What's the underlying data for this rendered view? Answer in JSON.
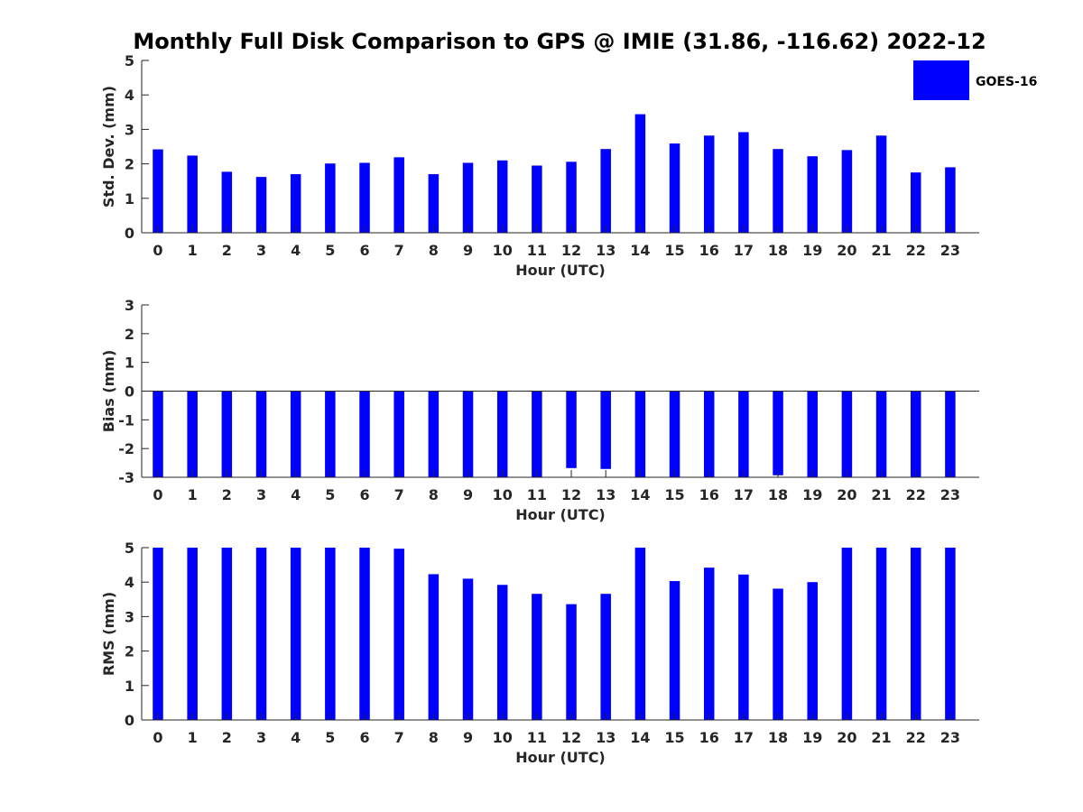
{
  "title": "Monthly Full Disk Comparison to GPS @ IMIE (31.86, -116.62) 2022-12",
  "legend": {
    "label": "GOES-16",
    "color": "#0000ff"
  },
  "chart_data": [
    {
      "type": "bar",
      "xlabel": "Hour (UTC)",
      "ylabel": "Std. Dev. (mm)",
      "ylim": [
        0,
        5
      ],
      "yticks": [
        0,
        1,
        2,
        3,
        4,
        5
      ],
      "categories": [
        "0",
        "1",
        "2",
        "3",
        "4",
        "5",
        "6",
        "7",
        "8",
        "9",
        "10",
        "11",
        "12",
        "13",
        "14",
        "15",
        "16",
        "17",
        "18",
        "19",
        "20",
        "21",
        "22",
        "23"
      ],
      "series": [
        {
          "name": "GOES-16",
          "color": "#0000ff",
          "values": [
            2.42,
            2.24,
            1.77,
            1.62,
            1.7,
            2.01,
            2.03,
            2.19,
            1.7,
            2.03,
            2.1,
            1.95,
            2.06,
            2.43,
            3.44,
            2.59,
            2.82,
            2.92,
            2.43,
            2.22,
            2.4,
            2.82,
            1.75,
            1.9
          ]
        }
      ],
      "legend_position": "top-right"
    },
    {
      "type": "bar",
      "xlabel": "Hour (UTC)",
      "ylabel": "Bias (mm)",
      "ylim": [
        -3,
        3
      ],
      "yticks": [
        -3,
        -2,
        -1,
        0,
        1,
        2,
        3
      ],
      "categories": [
        "0",
        "1",
        "2",
        "3",
        "4",
        "5",
        "6",
        "7",
        "8",
        "9",
        "10",
        "11",
        "12",
        "13",
        "14",
        "15",
        "16",
        "17",
        "18",
        "19",
        "20",
        "21",
        "22",
        "23"
      ],
      "series": [
        {
          "name": "GOES-16",
          "color": "#0000ff",
          "values": [
            -3,
            -3,
            -3,
            -3,
            -3,
            -3,
            -3,
            -3,
            -3,
            -3,
            -3,
            -3,
            -2.68,
            -2.71,
            -3,
            -3,
            -3,
            -3,
            -2.93,
            -3,
            -3,
            -3,
            -3,
            -3
          ]
        }
      ],
      "zero_line": true
    },
    {
      "type": "bar",
      "xlabel": "Hour (UTC)",
      "ylabel": "RMS (mm)",
      "ylim": [
        0,
        5
      ],
      "yticks": [
        0,
        1,
        2,
        3,
        4,
        5
      ],
      "categories": [
        "0",
        "1",
        "2",
        "3",
        "4",
        "5",
        "6",
        "7",
        "8",
        "9",
        "10",
        "11",
        "12",
        "13",
        "14",
        "15",
        "16",
        "17",
        "18",
        "19",
        "20",
        "21",
        "22",
        "23"
      ],
      "series": [
        {
          "name": "GOES-16",
          "color": "#0000ff",
          "values": [
            5,
            5,
            5,
            5,
            5,
            5,
            5,
            4.97,
            4.23,
            4.1,
            3.92,
            3.66,
            3.36,
            3.66,
            5,
            4.03,
            4.42,
            4.22,
            3.81,
            4.0,
            5,
            5,
            5,
            5
          ]
        }
      ]
    }
  ]
}
